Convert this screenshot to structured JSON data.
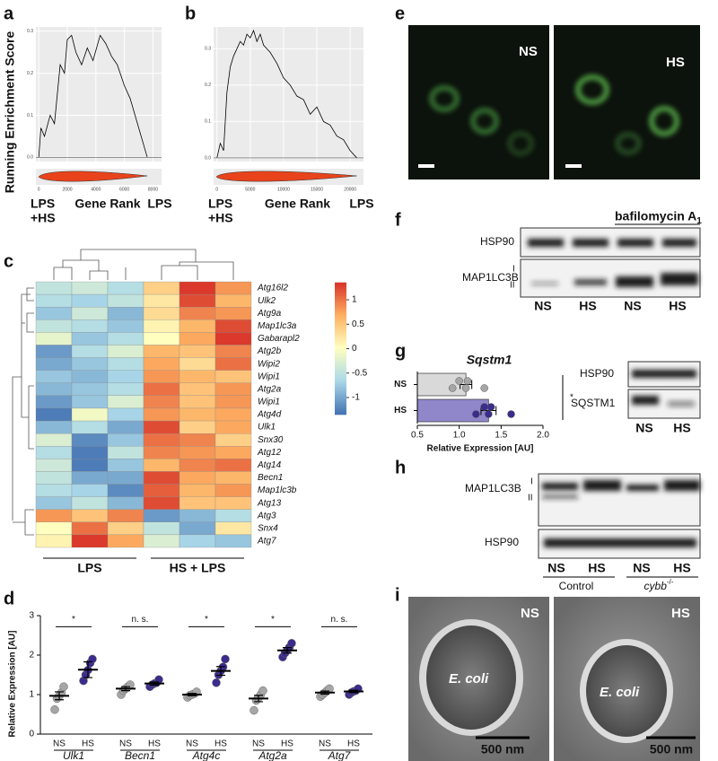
{
  "panel_labels": [
    "a",
    "b",
    "c",
    "d",
    "e",
    "f",
    "g",
    "h",
    "i"
  ],
  "chart_data": [
    {
      "type": "line",
      "y_label": "Running Enrichment Score",
      "x_label": "Gene Rank",
      "left_label": [
        "LPS",
        "+HS"
      ],
      "right_label": "LPS",
      "color": "#000000",
      "rug_color": "#e8431b",
      "grid": true,
      "x": [
        0,
        150,
        400,
        800,
        1100,
        1500,
        1800,
        2000,
        2300,
        2600,
        3000,
        3400,
        3800,
        4300,
        4700,
        5100,
        5500,
        6000,
        6400,
        7000,
        7600
      ],
      "values": [
        0.0,
        0.07,
        0.05,
        0.1,
        0.08,
        0.22,
        0.2,
        0.28,
        0.29,
        0.25,
        0.22,
        0.26,
        0.23,
        0.29,
        0.27,
        0.24,
        0.22,
        0.17,
        0.14,
        0.07,
        0.0
      ],
      "xlim": [
        -200,
        8600
      ],
      "ylim": [
        -0.01,
        0.31
      ],
      "xticks": [
        0,
        2000,
        4000,
        6000,
        8000
      ],
      "yticks": [
        {
          "value": 0,
          "label": "0.0"
        },
        0.1,
        0.2,
        0.3
      ]
    },
    {
      "type": "line",
      "x_label": "Gene Rank",
      "left_label": [
        "LPS",
        "+HS"
      ],
      "right_label": "LPS",
      "color": "#000000",
      "rug_color": "#e8431b",
      "grid": true,
      "x": [
        0,
        500,
        1000,
        1500,
        2000,
        2500,
        3000,
        3500,
        4000,
        4500,
        5000,
        5500,
        6000,
        6500,
        7000,
        8000,
        9000,
        10000,
        11000,
        12000,
        13000,
        14000,
        15000,
        16000,
        17000,
        18000,
        19000,
        20000,
        21000
      ],
      "values": [
        0.0,
        0.04,
        0.02,
        0.18,
        0.25,
        0.28,
        0.3,
        0.32,
        0.31,
        0.34,
        0.33,
        0.35,
        0.32,
        0.34,
        0.31,
        0.29,
        0.26,
        0.22,
        0.2,
        0.17,
        0.16,
        0.12,
        0.14,
        0.1,
        0.09,
        0.06,
        0.05,
        0.02,
        0.0
      ],
      "xlim": [
        -500,
        22000
      ],
      "ylim": [
        -0.01,
        0.36
      ],
      "xticks": [
        0,
        5000,
        10000,
        15000,
        20000
      ],
      "yticks": [
        {
          "value": 0,
          "label": "0.0"
        },
        0.1,
        0.2,
        0.3
      ]
    },
    {
      "type": "heatmap",
      "rows": [
        "Atg16l2",
        "Ulk2",
        "Atg9a",
        "Map1lc3a",
        "Gabarapl2",
        "Atg2b",
        "Wipi2",
        "Wipi1",
        "Atg2a",
        "Wipi1",
        "Atg4d",
        "Ulk1",
        "Snx30",
        "Atg12",
        "Atg14",
        "Becn1",
        "Map1lc3b",
        "Atg13",
        "Atg3",
        "Snx4",
        "Atg7"
      ],
      "groups": [
        "LPS",
        "HS + LPS"
      ],
      "values": [
        [
          -0.5,
          -0.4,
          -0.6,
          0.4,
          1.3,
          0.8
        ],
        [
          -0.6,
          -0.7,
          -0.5,
          0.2,
          1.2,
          0.6
        ],
        [
          -0.8,
          -0.4,
          -0.9,
          0.3,
          0.9,
          0.8
        ],
        [
          -0.5,
          -0.6,
          -0.8,
          0.1,
          0.6,
          1.2
        ],
        [
          -0.2,
          -0.8,
          -0.6,
          0.0,
          0.7,
          1.3
        ],
        [
          -1.1,
          -0.6,
          -0.3,
          0.6,
          0.5,
          0.9
        ],
        [
          -1.0,
          -0.8,
          -0.6,
          0.7,
          0.3,
          1.0
        ],
        [
          -0.8,
          -0.9,
          -0.7,
          0.8,
          0.6,
          0.5
        ],
        [
          -0.9,
          -0.8,
          -0.6,
          1.0,
          0.5,
          0.8
        ],
        [
          -1.1,
          -0.8,
          -0.3,
          0.9,
          0.5,
          0.8
        ],
        [
          -1.3,
          -0.1,
          -0.7,
          0.8,
          0.6,
          0.7
        ],
        [
          -0.9,
          -0.6,
          -1.0,
          1.2,
          0.4,
          0.7
        ],
        [
          -0.3,
          -1.2,
          -0.8,
          1.0,
          0.9,
          0.4
        ],
        [
          -0.6,
          -1.3,
          -0.5,
          0.9,
          0.8,
          0.7
        ],
        [
          -0.4,
          -1.3,
          -0.8,
          0.6,
          0.9,
          1.0
        ],
        [
          -0.5,
          -1.0,
          -1.0,
          1.2,
          0.7,
          0.6
        ],
        [
          -0.6,
          -0.7,
          -1.2,
          1.1,
          0.6,
          0.8
        ],
        [
          -0.8,
          -0.5,
          -0.9,
          1.2,
          0.5,
          0.5
        ],
        [
          0.8,
          0.5,
          0.9,
          -1.1,
          -0.9,
          -0.6
        ],
        [
          0.0,
          1.0,
          0.4,
          -0.5,
          -1.0,
          0.2
        ],
        [
          0.1,
          1.3,
          0.7,
          -0.3,
          -0.7,
          -0.8
        ]
      ],
      "zlim": [
        -1.35,
        1.35
      ],
      "zticks": [
        -1,
        -0.5,
        0,
        0.5,
        1
      ],
      "colors": [
        "#4575b4",
        "#abd9e9",
        "#ffffbf",
        "#fdae61",
        "#d73027"
      ]
    },
    {
      "type": "dot",
      "y_label": "Relative Expression [AU]",
      "categories": [
        "Ulk1",
        "Becn1",
        "Atg4c",
        "Atg2a",
        "Atg7"
      ],
      "significance": [
        "*",
        "n. s.",
        "*",
        "*",
        "n. s."
      ],
      "series": [
        {
          "name": "NS",
          "color": "#a6a6a6",
          "means": [
            0.97,
            1.15,
            1.0,
            0.9,
            1.05
          ],
          "sem": [
            0.1,
            0.05,
            0.03,
            0.08,
            0.04
          ],
          "points": [
            [
              0.62,
              0.9,
              0.97,
              1.05,
              1.2
            ],
            [
              1.0,
              1.1,
              1.15,
              1.2,
              1.25
            ],
            [
              0.93,
              0.98,
              1.0,
              1.02,
              1.07
            ],
            [
              0.6,
              0.85,
              0.92,
              1.0,
              1.1
            ],
            [
              0.95,
              1.0,
              1.05,
              1.1,
              1.15
            ]
          ]
        },
        {
          "name": "HS",
          "color": "#3b2c8c",
          "means": [
            1.63,
            1.28,
            1.6,
            2.12,
            1.08
          ],
          "sem": [
            0.2,
            0.04,
            0.11,
            0.07,
            0.03
          ],
          "points": [
            [
              1.35,
              1.5,
              1.62,
              1.8,
              1.9
            ],
            [
              1.2,
              1.25,
              1.28,
              1.3,
              1.38
            ],
            [
              1.3,
              1.5,
              1.6,
              1.7,
              1.9
            ],
            [
              1.95,
              2.05,
              2.12,
              2.2,
              2.3
            ],
            [
              1.0,
              1.05,
              1.08,
              1.1,
              1.15
            ]
          ]
        }
      ],
      "ylim": [
        0,
        3
      ],
      "yticks": [
        0,
        1,
        2,
        3
      ]
    },
    {
      "type": "hbar",
      "title": "Sqstm1",
      "x_label": "Relative Expression [AU]",
      "significance": "*",
      "categories": [
        "NS",
        "HS"
      ],
      "values": [
        1.08,
        1.35
      ],
      "error": [
        0.07,
        0.09
      ],
      "colors": [
        "#d9d9d9",
        "#8f87c9"
      ],
      "point_colors": [
        "#a6a6a6",
        "#3b2c8c"
      ],
      "points": [
        [
          0.92,
          1.0,
          1.08,
          1.1,
          1.3
        ],
        [
          1.2,
          1.3,
          1.35,
          1.38,
          1.62
        ]
      ],
      "xlim": [
        0.5,
        2.0
      ],
      "xticks": [
        0.5,
        {
          "value": 1,
          "label": "1.0"
        },
        1.5,
        {
          "value": 2,
          "label": "2.0"
        }
      ]
    }
  ],
  "panels": {
    "e": {
      "labels": [
        "NS",
        "HS"
      ]
    },
    "f": {
      "treatment": "bafilomycin A",
      "treatment_sub": "1",
      "rows": [
        "HSP90",
        "MAP1LC3B"
      ],
      "bands": [
        "I",
        "II"
      ],
      "lanes": [
        "NS",
        "HS",
        "NS",
        "HS"
      ]
    },
    "g": {
      "rows": [
        "HSP90",
        "SQSTM1"
      ],
      "lanes": [
        "NS",
        "HS"
      ]
    },
    "h": {
      "rows": [
        "MAP1LC3B",
        "HSP90"
      ],
      "bands": [
        "I",
        "II"
      ],
      "lanes": [
        "NS",
        "HS",
        "NS",
        "HS"
      ],
      "groups": [
        "Control",
        "cybb"
      ],
      "group_sup": "-/-"
    },
    "i": {
      "labels": [
        "NS",
        "HS"
      ],
      "object": "E. coli",
      "scale": "500 nm"
    }
  }
}
